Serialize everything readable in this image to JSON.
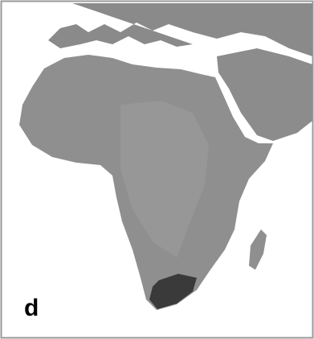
{
  "panel_label": "d"
}
